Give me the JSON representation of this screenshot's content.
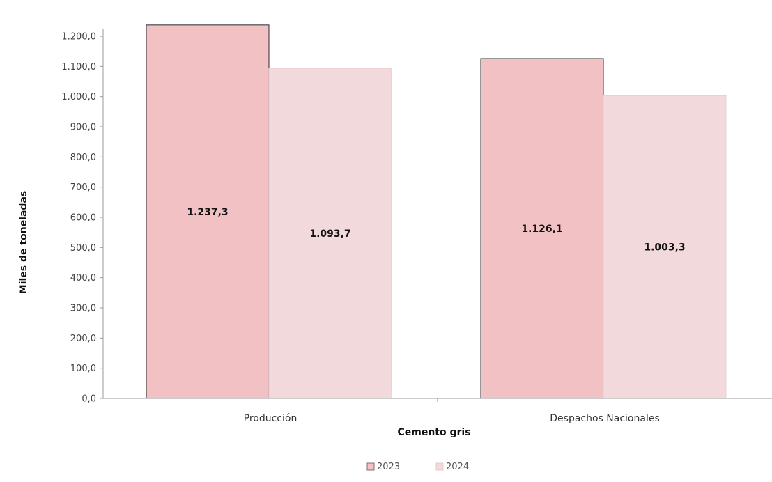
{
  "chart_data": {
    "type": "bar",
    "categories": [
      "Producción",
      "Despachos Nacionales"
    ],
    "series": [
      {
        "name": "2023",
        "values": [
          1237.3,
          1126.1
        ],
        "labels": [
          "1.237,3",
          "1.126,1"
        ],
        "color": "#f2c1c4",
        "stroke": "#2b2b2b"
      },
      {
        "name": "2024",
        "values": [
          1093.7,
          1003.3
        ],
        "labels": [
          "1.093,7",
          "1.003,3"
        ],
        "color": "#f2d9db",
        "stroke": "#e7c9cb"
      }
    ],
    "title": "",
    "xlabel": "Cemento gris",
    "ylabel": "Miles de toneladas",
    "ylim": [
      0,
      1200
    ],
    "ytick_step": 100,
    "ytick_labels": [
      "0,0",
      "100,0",
      "200,0",
      "300,0",
      "400,0",
      "500,0",
      "600,0",
      "700,0",
      "800,0",
      "900,0",
      "1.000,0",
      "1.100,0",
      "1.200,0"
    ],
    "grid": false,
    "legend": "bottom-center"
  }
}
